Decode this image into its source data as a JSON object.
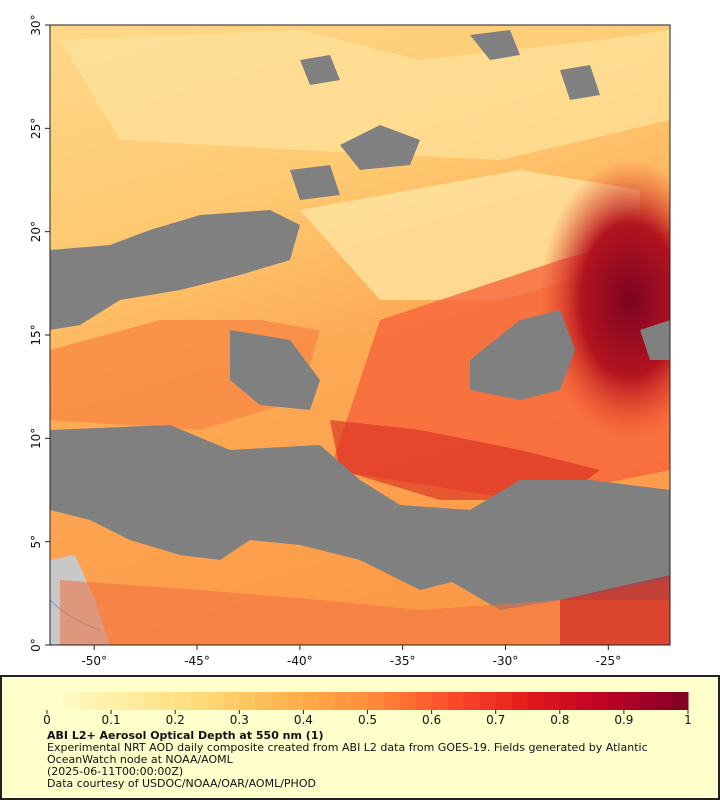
{
  "chart_data": {
    "type": "map",
    "xlim": [
      -52.15,
      -22
    ],
    "ylim": [
      0,
      30
    ],
    "xticks": [
      {
        "value": -50,
        "label": "-50°"
      },
      {
        "value": -45,
        "label": "-45°"
      },
      {
        "value": -40,
        "label": "-40°"
      },
      {
        "value": -35,
        "label": "-35°"
      },
      {
        "value": -30,
        "label": "-30°"
      },
      {
        "value": -25,
        "label": "-25°"
      }
    ],
    "yticks": [
      {
        "value": 0,
        "label": "0°"
      },
      {
        "value": 5,
        "label": "5°"
      },
      {
        "value": 10,
        "label": "10°"
      },
      {
        "value": 15,
        "label": "15°"
      },
      {
        "value": 20,
        "label": "20°"
      },
      {
        "value": 25,
        "label": "25°"
      },
      {
        "value": 30,
        "label": "30°"
      }
    ],
    "colorbar": {
      "lim": [
        0,
        1
      ],
      "ticks": [
        0,
        0.1,
        0.2,
        0.3,
        0.4,
        0.5,
        0.6,
        0.7,
        0.8,
        0.9,
        1
      ],
      "colors": [
        "#ffffcc",
        "#ffeda0",
        "#fed976",
        "#feb24c",
        "#fd8d3c",
        "#fc4e2a",
        "#e31a1c",
        "#bd0026",
        "#800026"
      ]
    },
    "title": "ABI L2+ Aerosol Optical Depth at 550 nm (1)",
    "description": "Experimental NRT AOD daily composite created from ABI L2 data from GOES-19. Fields generated by Atlantic OceanWatch node at NOAA/AOML",
    "time": "(2025-06-11T00:00:00Z)",
    "credit": "Data courtesy of USDOC/NOAA/OAR/AOML/PHOD"
  }
}
